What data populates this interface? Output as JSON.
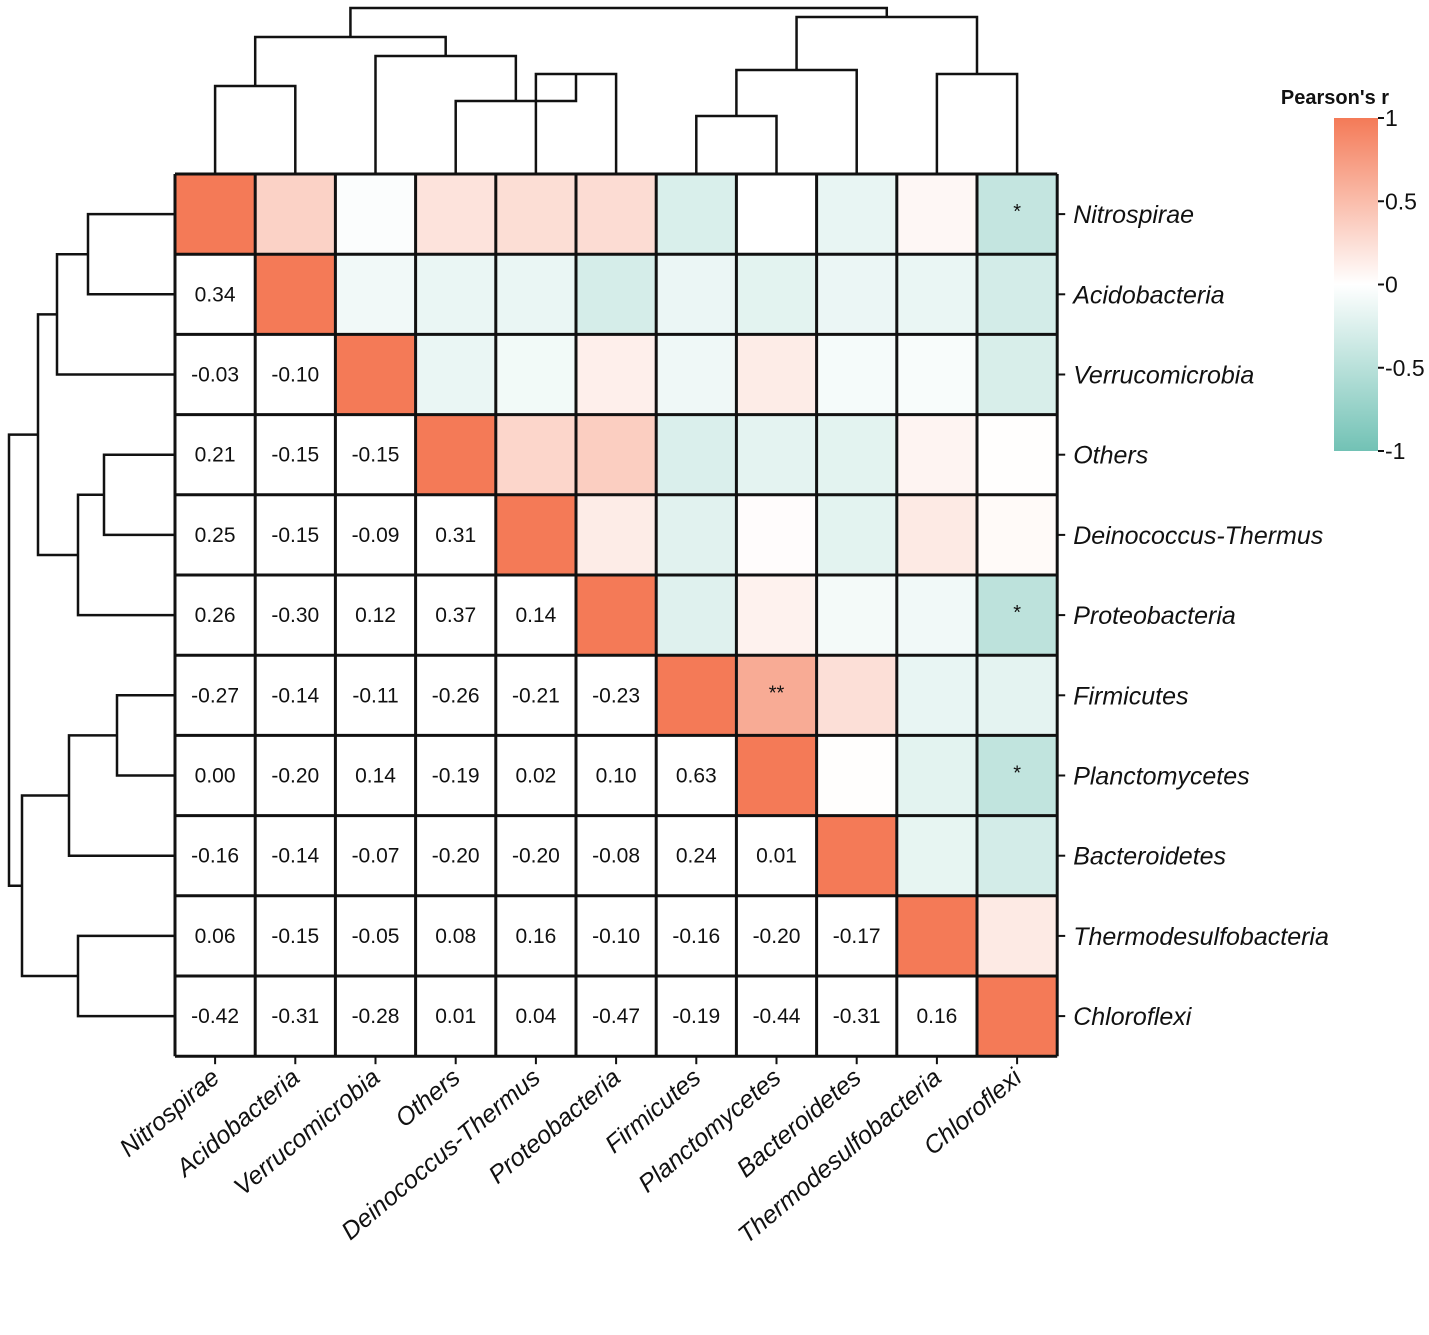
{
  "chart_data": {
    "type": "heatmap",
    "title": "",
    "legend_title": "Pearson's r",
    "colorbar_ticks": [
      "1",
      "0.5",
      "0",
      "-0.5",
      "-1"
    ],
    "color_high": "#F47A57",
    "color_mid": "#FFFFFF",
    "color_low": "#72C2B5",
    "labels": [
      "Nitrospirae",
      "Acidobacteria",
      "Verrucomicrobia",
      "Others",
      "Deinococcus-Thermus",
      "Proteobacteria",
      "Firmicutes",
      "Planctomycetes",
      "Bacteroidetes",
      "Thermodesulfobacteria",
      "Chloroflexi"
    ],
    "matrix": [
      [
        1.0,
        0.34,
        -0.03,
        0.21,
        0.25,
        0.26,
        -0.27,
        0.0,
        -0.16,
        0.06,
        -0.42
      ],
      [
        0.34,
        1.0,
        -0.1,
        -0.15,
        -0.15,
        -0.3,
        -0.14,
        -0.2,
        -0.14,
        -0.15,
        -0.31
      ],
      [
        -0.03,
        -0.1,
        1.0,
        -0.15,
        -0.09,
        0.12,
        -0.11,
        0.14,
        -0.07,
        -0.05,
        -0.28
      ],
      [
        0.21,
        -0.15,
        -0.15,
        1.0,
        0.31,
        0.37,
        -0.26,
        -0.19,
        -0.2,
        0.08,
        0.01
      ],
      [
        0.25,
        -0.15,
        -0.09,
        0.31,
        1.0,
        0.14,
        -0.21,
        0.02,
        -0.2,
        0.16,
        0.04
      ],
      [
        0.26,
        -0.3,
        0.12,
        0.37,
        0.14,
        1.0,
        -0.23,
        0.1,
        -0.08,
        -0.1,
        -0.47
      ],
      [
        -0.27,
        -0.14,
        -0.11,
        -0.26,
        -0.21,
        -0.23,
        1.0,
        0.63,
        0.24,
        -0.16,
        -0.19
      ],
      [
        0.0,
        -0.2,
        0.14,
        -0.19,
        0.02,
        0.1,
        0.63,
        1.0,
        0.01,
        -0.2,
        -0.44
      ],
      [
        -0.16,
        -0.14,
        -0.07,
        -0.2,
        -0.2,
        -0.08,
        0.24,
        0.01,
        1.0,
        -0.17,
        -0.31
      ],
      [
        0.06,
        -0.15,
        -0.05,
        0.08,
        0.16,
        -0.1,
        -0.16,
        -0.2,
        -0.17,
        1.0,
        0.16
      ],
      [
        -0.42,
        -0.31,
        -0.28,
        0.01,
        0.04,
        -0.47,
        -0.19,
        -0.44,
        -0.31,
        0.16,
        1.0
      ]
    ],
    "lower_triangle_shows": "value",
    "upper_triangle_shows": "color",
    "significance": [
      {
        "row": 0,
        "col": 10,
        "mark": "*"
      },
      {
        "row": 5,
        "col": 10,
        "mark": "*"
      },
      {
        "row": 6,
        "col": 7,
        "mark": "**"
      },
      {
        "row": 7,
        "col": 10,
        "mark": "*"
      }
    ],
    "dendrogram": "hierarchical clustering tree drawn on top (columns) and left (rows)"
  }
}
